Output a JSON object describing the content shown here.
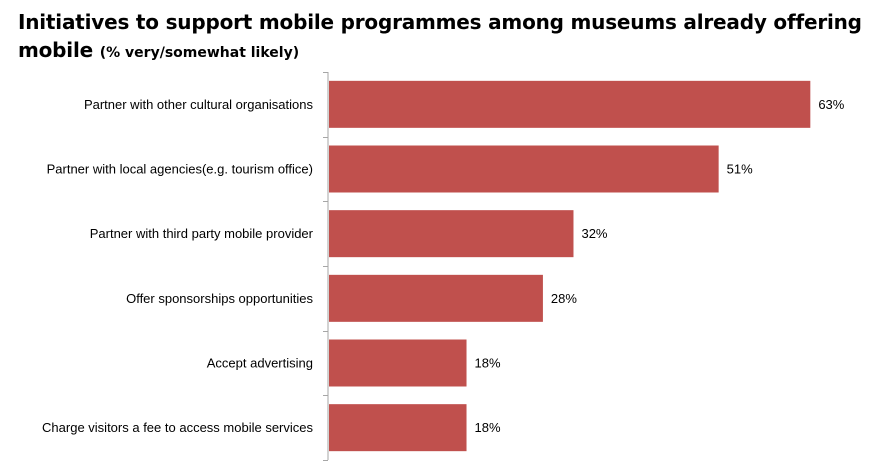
{
  "chart_data": {
    "type": "bar",
    "orientation": "horizontal",
    "title": "Initiatives to support mobile programmes among museums already offering mobile",
    "subtitle": "(% very/somewhat likely)",
    "categories": [
      "Partner with other cultural organisations",
      "Partner with local agencies(e.g. tourism office)",
      "Partner with third party mobile provider",
      "Offer sponsorships opportunities",
      "Accept advertising",
      "Charge visitors a fee to access mobile services"
    ],
    "values": [
      63,
      51,
      32,
      28,
      18,
      18
    ],
    "value_labels": [
      "63%",
      "51%",
      "32%",
      "28%",
      "18%",
      "18%"
    ],
    "unit": "%",
    "xlim": [
      0,
      70
    ],
    "grid": false,
    "legend": "none",
    "colors": {
      "bar": "#C0504D",
      "axis": "#A6A6A6",
      "text": "#000000"
    }
  }
}
